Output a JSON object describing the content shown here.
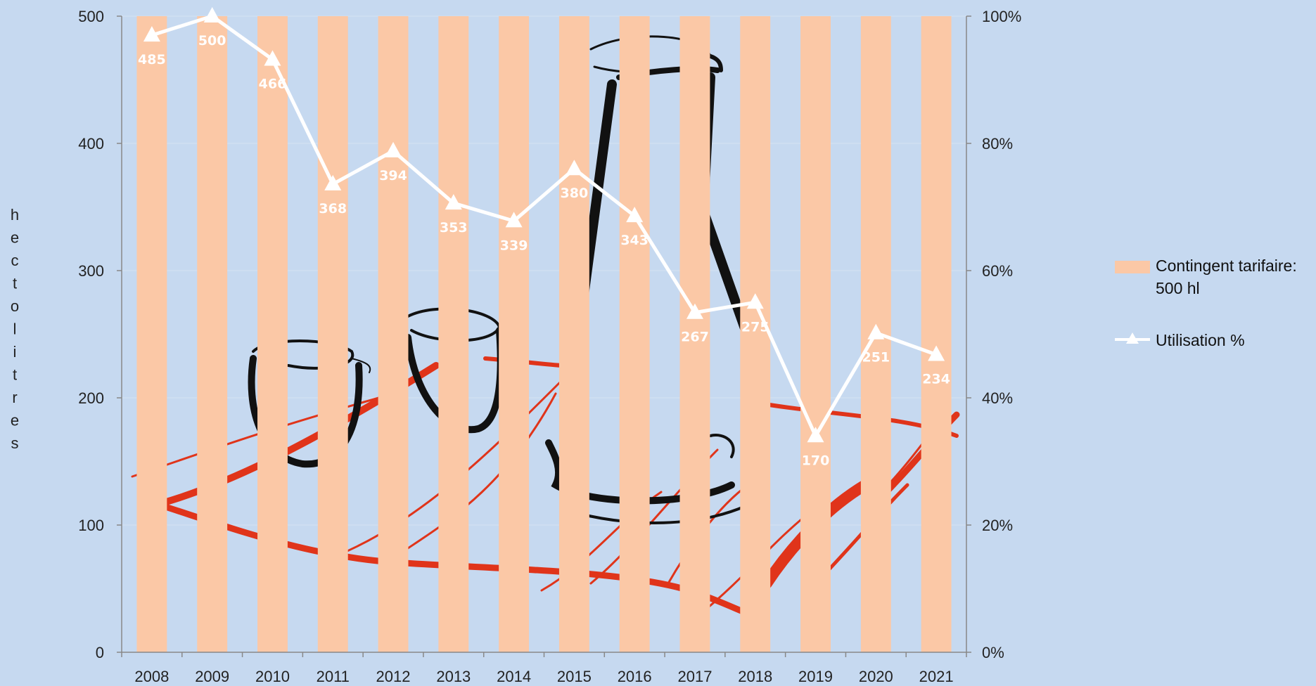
{
  "colors": {
    "background": "#c6d9f0",
    "bar": "#fbc8a6",
    "line": "#ffffff",
    "axis": "#888888",
    "gridline": "#d7e3f2",
    "illustration_dark": "#111111",
    "illustration_red": "#e0341a"
  },
  "illustration": "sketch-of-teapot-and-cups",
  "chart_data": {
    "type": "bar+line",
    "categories": [
      "2008",
      "2009",
      "2010",
      "2011",
      "2012",
      "2013",
      "2014",
      "2015",
      "2016",
      "2017",
      "2018",
      "2019",
      "2020",
      "2021"
    ],
    "series": [
      {
        "name": "Contingent tarifaire: 500 hl",
        "type": "bar",
        "axis": "left",
        "values": [
          500,
          500,
          500,
          500,
          500,
          500,
          500,
          500,
          500,
          500,
          500,
          500,
          500,
          500
        ]
      },
      {
        "name": "Utilisation %",
        "type": "line",
        "axis": "right",
        "values": [
          97,
          100,
          93.2,
          73.6,
          78.8,
          70.6,
          67.8,
          76,
          68.6,
          53.4,
          55,
          34,
          50.2,
          46.8
        ],
        "data_labels": [
          "485",
          "500",
          "466",
          "368",
          "394",
          "353",
          "339",
          "380",
          "343",
          "267",
          "275",
          "170",
          "251",
          "234"
        ]
      }
    ],
    "ylabel": "hectolitres",
    "ylim": [
      0,
      500
    ],
    "y_ticks": [
      "0",
      "100",
      "200",
      "300",
      "400",
      "500"
    ],
    "y2lim": [
      0,
      100
    ],
    "y2_ticks": [
      "0%",
      "20%",
      "40%",
      "60%",
      "80%",
      "100%"
    ],
    "grid": true,
    "legend_position": "right"
  },
  "legend": {
    "bar_label": "Contingent tarifaire: 500 hl",
    "line_label": "Utilisation %"
  }
}
